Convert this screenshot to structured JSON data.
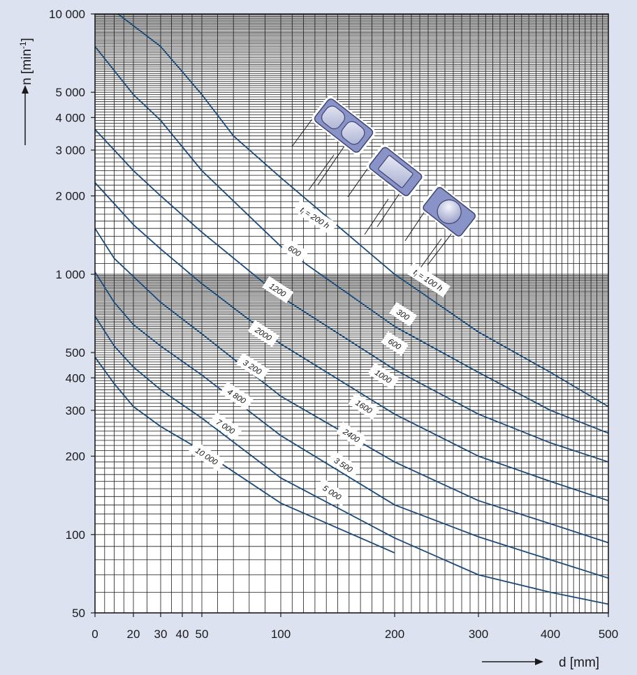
{
  "chart_data": {
    "type": "line",
    "title": "",
    "xlabel": "d [mm]",
    "ylabel": "n [min",
    "ylabel_sup": "-1",
    "ylabel_close": "]",
    "x_scale": "custom-nonlinear",
    "y_scale": "log",
    "xlim": [
      0,
      500
    ],
    "ylim": [
      50,
      10000
    ],
    "x_ticks": [
      {
        "value": 0,
        "label": "0"
      },
      {
        "value": 20,
        "label": "20"
      },
      {
        "value": 30,
        "label": "30"
      },
      {
        "value": 40,
        "label": "40"
      },
      {
        "value": 50,
        "label": "50"
      },
      {
        "value": 100,
        "label": "100"
      },
      {
        "value": 200,
        "label": "200"
      },
      {
        "value": 300,
        "label": "300"
      },
      {
        "value": 400,
        "label": "400"
      },
      {
        "value": 500,
        "label": "500"
      }
    ],
    "y_ticks": [
      {
        "value": 10000,
        "label": "10 000"
      },
      {
        "value": 5000,
        "label": "5 000"
      },
      {
        "value": 4000,
        "label": "4 000"
      },
      {
        "value": 3000,
        "label": "3 000"
      },
      {
        "value": 2000,
        "label": "2 000"
      },
      {
        "value": 1000,
        "label": "1 000"
      },
      {
        "value": 500,
        "label": "500"
      },
      {
        "value": 400,
        "label": "400"
      },
      {
        "value": 300,
        "label": "300"
      },
      {
        "value": 200,
        "label": "200"
      },
      {
        "value": 100,
        "label": "100"
      },
      {
        "value": 50,
        "label": "50"
      }
    ],
    "grid": true,
    "series": [
      {
        "points": [
          [
            12,
            10000
          ],
          [
            30,
            7500
          ],
          [
            40,
            6000
          ],
          [
            50,
            4900
          ],
          [
            70,
            3400
          ],
          [
            100,
            2350
          ],
          [
            200,
            1000
          ],
          [
            300,
            600
          ],
          [
            400,
            420
          ],
          [
            500,
            310
          ]
        ]
      },
      {
        "points": [
          [
            0,
            7500
          ],
          [
            20,
            4900
          ],
          [
            30,
            3900
          ],
          [
            50,
            2500
          ],
          [
            100,
            1280
          ],
          [
            200,
            630
          ],
          [
            300,
            420
          ],
          [
            400,
            300
          ],
          [
            500,
            245
          ]
        ]
      },
      {
        "points": [
          [
            0,
            3600
          ],
          [
            20,
            2500
          ],
          [
            30,
            2000
          ],
          [
            50,
            1450
          ],
          [
            100,
            820
          ],
          [
            200,
            430
          ],
          [
            300,
            290
          ],
          [
            400,
            225
          ],
          [
            500,
            190
          ]
        ]
      },
      {
        "points": [
          [
            0,
            2250
          ],
          [
            20,
            1550
          ],
          [
            30,
            1250
          ],
          [
            50,
            920
          ],
          [
            100,
            540
          ],
          [
            200,
            290
          ],
          [
            300,
            200
          ],
          [
            400,
            160
          ],
          [
            500,
            135
          ]
        ]
      },
      {
        "points": [
          [
            0,
            1500
          ],
          [
            10,
            1150
          ],
          [
            20,
            980
          ],
          [
            30,
            780
          ],
          [
            50,
            590
          ],
          [
            100,
            340
          ],
          [
            200,
            190
          ],
          [
            300,
            135
          ],
          [
            400,
            110
          ],
          [
            500,
            93
          ]
        ]
      },
      {
        "points": [
          [
            0,
            1020
          ],
          [
            10,
            780
          ],
          [
            20,
            640
          ],
          [
            30,
            530
          ],
          [
            50,
            410
          ],
          [
            100,
            240
          ],
          [
            200,
            130
          ],
          [
            300,
            98
          ],
          [
            400,
            80
          ],
          [
            500,
            68
          ]
        ]
      },
      {
        "points": [
          [
            0,
            690
          ],
          [
            10,
            530
          ],
          [
            20,
            440
          ],
          [
            30,
            360
          ],
          [
            50,
            280
          ],
          [
            100,
            165
          ],
          [
            200,
            97
          ],
          [
            300,
            70
          ],
          [
            400,
            60
          ],
          [
            500,
            54
          ]
        ]
      },
      {
        "points": [
          [
            0,
            480
          ],
          [
            10,
            380
          ],
          [
            20,
            310
          ],
          [
            30,
            260
          ],
          [
            50,
            210
          ],
          [
            100,
            132
          ],
          [
            200,
            85
          ]
        ]
      }
    ],
    "annotations": [
      {
        "text": "t",
        "sub": "l",
        "rest": " = 200 h",
        "x": 130,
        "y": 1650
      },
      {
        "text": "600",
        "x": 112,
        "y": 1230
      },
      {
        "text": "1200",
        "x": 98,
        "y": 870
      },
      {
        "text": "2000",
        "x": 89,
        "y": 590
      },
      {
        "text": "3 200",
        "x": 82,
        "y": 440
      },
      {
        "text": "4 800",
        "x": 72,
        "y": 340
      },
      {
        "text": "7 000",
        "x": 65,
        "y": 260
      },
      {
        "text": "10 000",
        "x": 53,
        "y": 200
      },
      {
        "text": "t",
        "sub": "l",
        "rest": " = 100 h",
        "x": 240,
        "y": 950
      },
      {
        "text": "300",
        "x": 210,
        "y": 700
      },
      {
        "text": "600",
        "x": 200,
        "y": 540
      },
      {
        "text": "1000",
        "x": 190,
        "y": 405
      },
      {
        "text": "1600",
        "x": 173,
        "y": 310
      },
      {
        "text": "2400",
        "x": 162,
        "y": 240
      },
      {
        "text": "3 500",
        "x": 155,
        "y": 185
      },
      {
        "text": "5 000",
        "x": 145,
        "y": 145
      }
    ]
  },
  "icons": [
    "spherical-roller-bearing-icon",
    "cylindrical-roller-bearing-icon",
    "ball-bearing-icon"
  ],
  "colors": {
    "background": "#dde2f0",
    "plot_background": "#ffffff",
    "curve": "#1a4a7a",
    "grid": "#1a1a1a",
    "bearing_fill": "#8a93c8",
    "roller_fill": "#c8cce4"
  }
}
